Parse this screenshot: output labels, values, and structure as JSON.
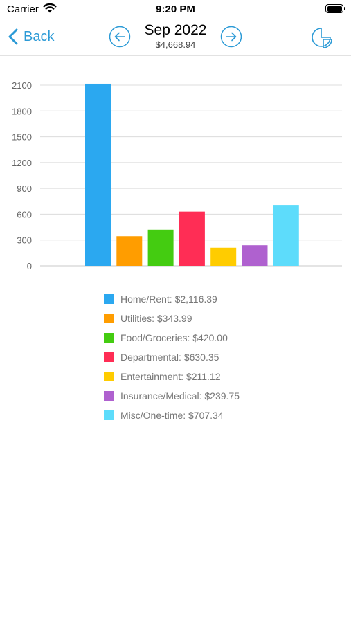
{
  "status_bar": {
    "carrier": "Carrier",
    "time": "9:20 PM"
  },
  "nav": {
    "back_label": "Back",
    "title": "Sep 2022",
    "subtitle": "$4,668.94"
  },
  "chart_data": {
    "type": "bar",
    "categories": [
      "Home/Rent",
      "Utilities",
      "Food/Groceries",
      "Departmental",
      "Entertainment",
      "Insurance/Medical",
      "Misc/One-time"
    ],
    "values": [
      2116.39,
      343.99,
      420.0,
      630.35,
      211.12,
      239.75,
      707.34
    ],
    "colors": [
      "#2ba8f0",
      "#ff9d00",
      "#44cc11",
      "#ff2d55",
      "#ffcc00",
      "#af61cf",
      "#5ddcfb"
    ],
    "yticks": [
      0,
      300,
      600,
      900,
      1200,
      1500,
      1800,
      2100
    ],
    "ylim": [
      0,
      2100
    ],
    "grid": true,
    "legend_position": "bottom"
  },
  "legend": {
    "items": [
      "Home/Rent: $2,116.39",
      "Utilities: $343.99",
      "Food/Groceries: $420.00",
      "Departmental: $630.35",
      "Entertainment: $211.12",
      "Insurance/Medical: $239.75",
      "Misc/One-time: $707.34"
    ]
  }
}
